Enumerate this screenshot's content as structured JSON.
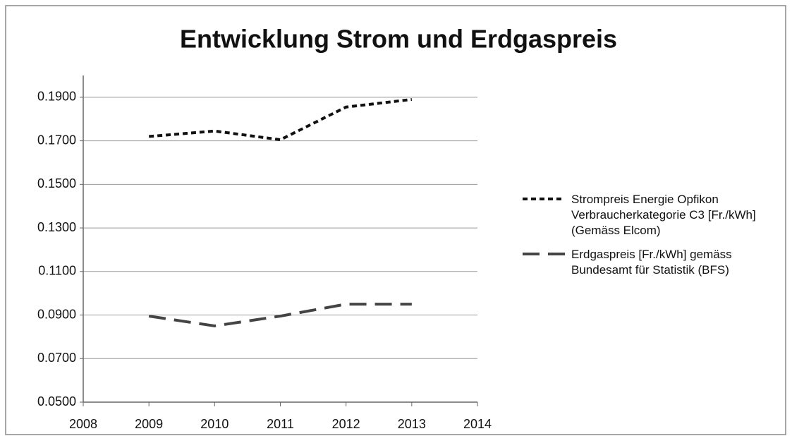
{
  "chart_data": {
    "type": "line",
    "title": "Entwicklung Strom und Erdgaspreis",
    "x": [
      2009,
      2010,
      2011,
      2012,
      2013
    ],
    "series": [
      {
        "name": "Strompreis Energie Opfikon Verbraucherkategorie C3 [Fr./kWh] (Gemäss Elcom)",
        "color": "#111111",
        "line_style": "short-dash",
        "values": [
          0.172,
          0.1745,
          0.1705,
          0.1855,
          0.189
        ]
      },
      {
        "name": "Erdgaspreis [Fr./kWh] gemäss Bundesamt für Statistik (BFS)",
        "color": "#444444",
        "line_style": "long-dash",
        "values": [
          0.0895,
          0.085,
          0.0895,
          0.095,
          0.095
        ]
      }
    ],
    "xlim": [
      2008,
      2014
    ],
    "xticks": [
      2008,
      2009,
      2010,
      2011,
      2012,
      2013,
      2014
    ],
    "ylim": [
      0.05,
      0.2
    ],
    "yticks": [
      {
        "value": 0.05,
        "label": "0.0500"
      },
      {
        "value": 0.07,
        "label": "0.0700"
      },
      {
        "value": 0.09,
        "label": "0.0900"
      },
      {
        "value": 0.11,
        "label": "0.1100"
      },
      {
        "value": 0.13,
        "label": "0.1300"
      },
      {
        "value": 0.15,
        "label": "0.1500"
      },
      {
        "value": 0.17,
        "label": "0.1700"
      },
      {
        "value": 0.19,
        "label": "0.1900"
      }
    ],
    "grid": true,
    "legend": "right"
  }
}
